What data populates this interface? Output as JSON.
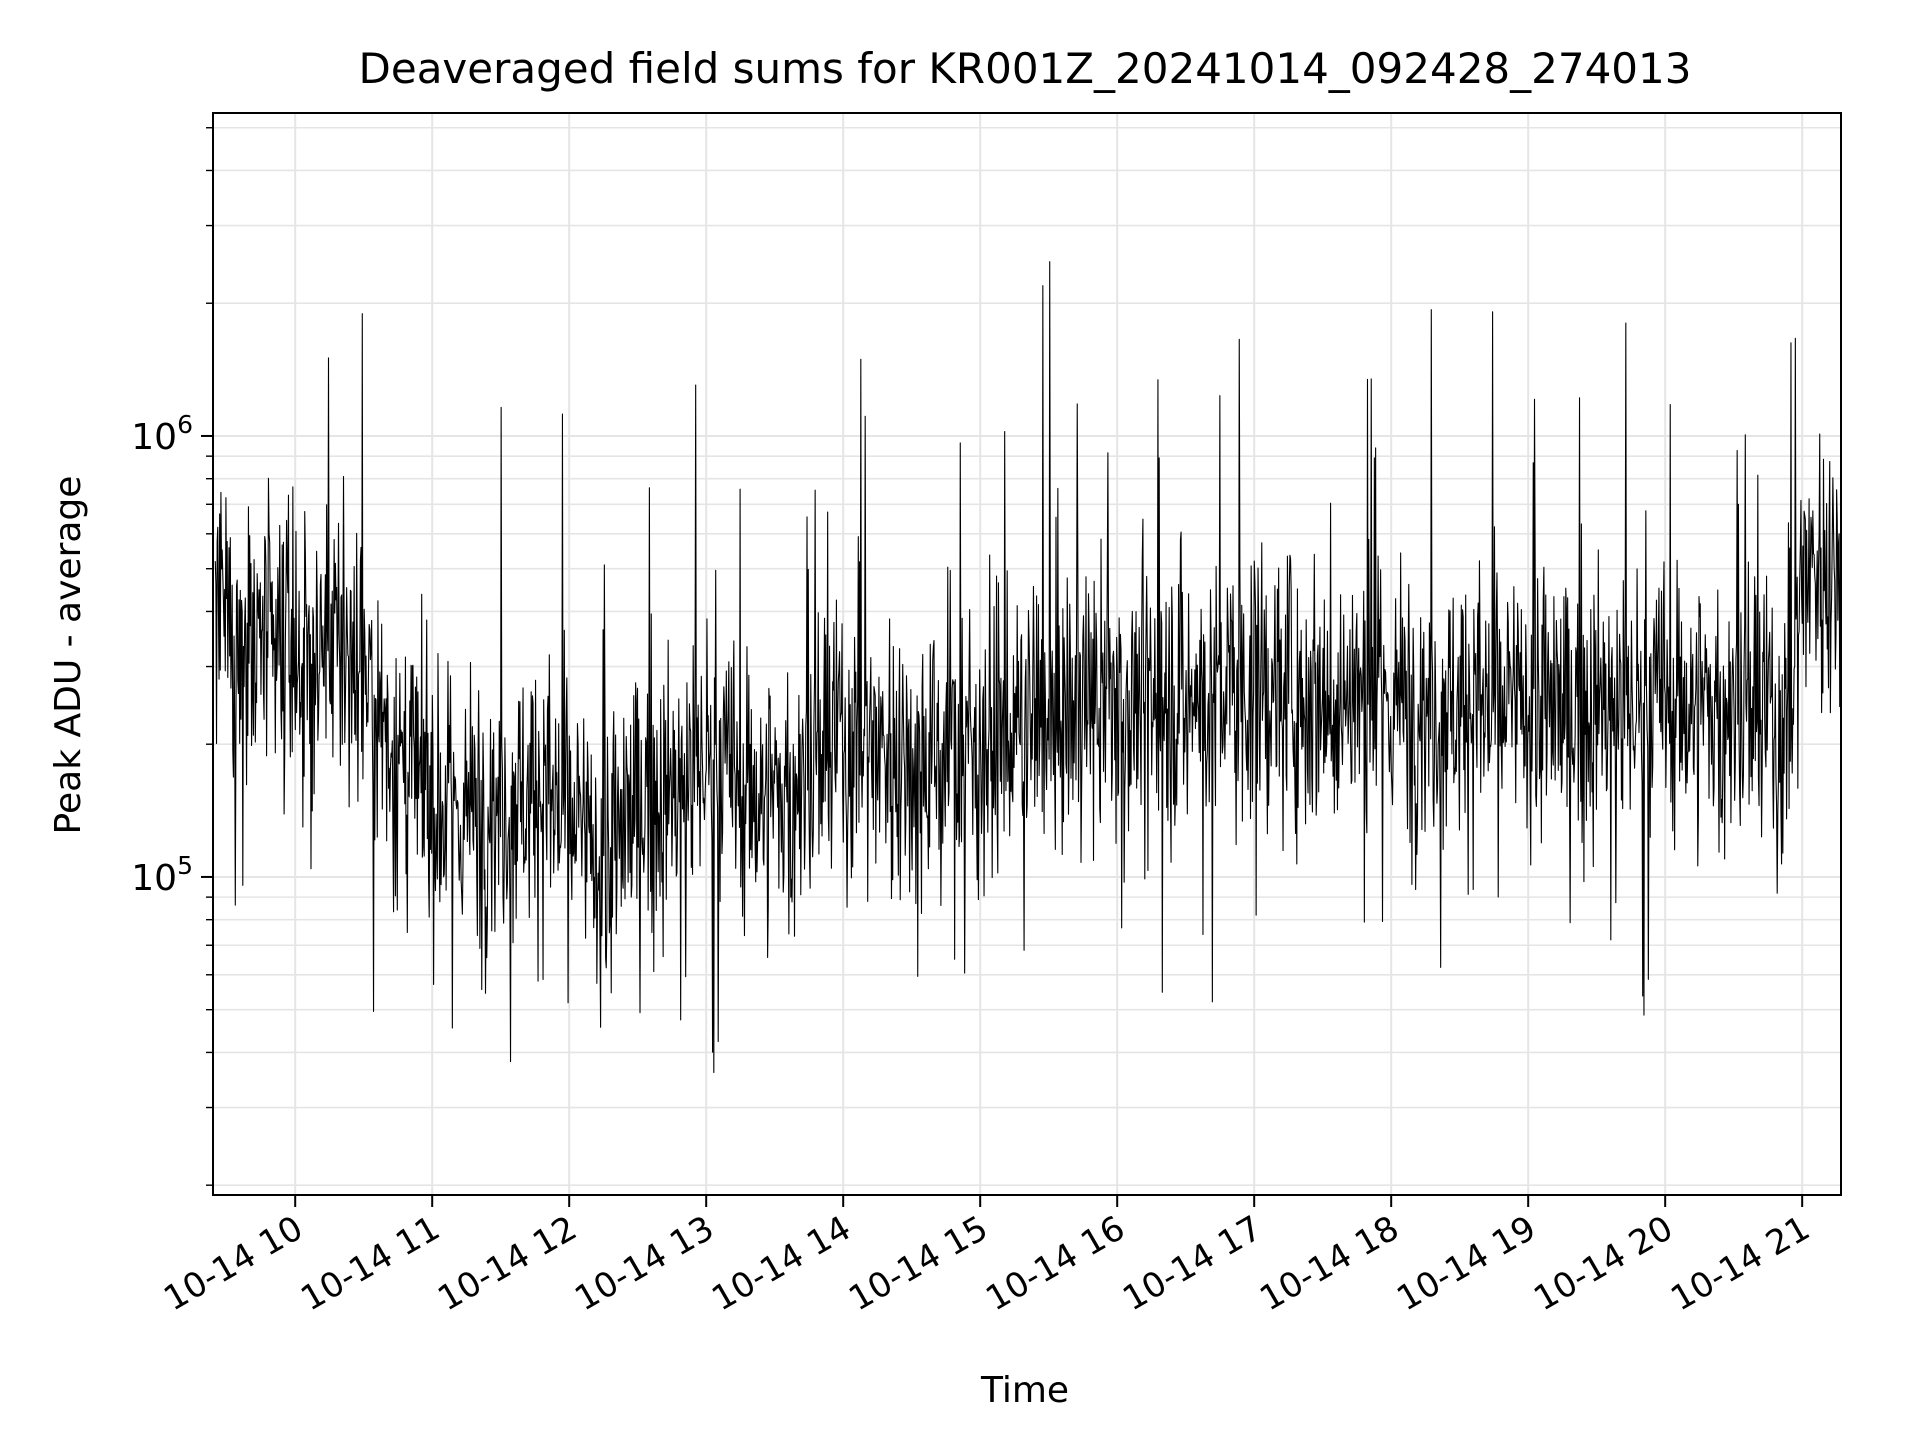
{
  "chart_data": {
    "type": "line",
    "title": "Deaveraged field sums for KR001Z_20241014_092428_274013",
    "xlabel": "Time",
    "ylabel": "Peak ADU - average",
    "x_ticks": [
      "10-14 10",
      "10-14 11",
      "10-14 12",
      "10-14 13",
      "10-14 14",
      "10-14 15",
      "10-14 16",
      "10-14 17",
      "10-14 18",
      "10-14 19",
      "10-14 20",
      "10-14 21"
    ],
    "x_tick_rotation_deg": 30,
    "xlim": [
      "2024-10-14 09:24",
      "2024-10-14 21:17"
    ],
    "y_scale": "log",
    "ylim": [
      19000,
      5400000
    ],
    "y_major_ticks": [
      {
        "value": 100000,
        "base": "10",
        "exp": "5"
      },
      {
        "value": 1000000,
        "base": "10",
        "exp": "6"
      }
    ],
    "grid": true,
    "line_color": "#000000",
    "grid_color": "#e5e5e5",
    "series": [
      {
        "x": [
          "2024-10-14 09:25",
          "2024-10-14 09:40",
          "2024-10-14 10:00",
          "2024-10-14 10:15",
          "2024-10-14 10:30",
          "2024-10-14 10:45",
          "2024-10-14 11:00",
          "2024-10-14 11:15",
          "2024-10-14 11:30",
          "2024-10-14 11:45",
          "2024-10-14 12:00",
          "2024-10-14 12:15",
          "2024-10-14 12:30",
          "2024-10-14 12:45",
          "2024-10-14 13:00",
          "2024-10-14 13:15",
          "2024-10-14 13:30",
          "2024-10-14 13:45",
          "2024-10-14 14:00",
          "2024-10-14 14:30",
          "2024-10-14 15:00",
          "2024-10-14 15:30",
          "2024-10-14 16:00",
          "2024-10-14 16:30",
          "2024-10-14 17:00",
          "2024-10-14 17:30",
          "2024-10-14 18:00",
          "2024-10-14 18:30",
          "2024-10-14 19:00",
          "2024-10-14 19:30",
          "2024-10-14 20:00",
          "2024-10-14 20:30",
          "2024-10-14 20:55",
          "2024-10-14 21:00",
          "2024-10-14 21:10",
          "2024-10-14 21:17"
        ],
        "values": [
          380000,
          340000,
          300000,
          330000,
          300000,
          180000,
          150000,
          140000,
          150000,
          160000,
          140000,
          100000,
          150000,
          150000,
          190000,
          160000,
          150000,
          170000,
          210000,
          190000,
          200000,
          230000,
          250000,
          260000,
          270000,
          260000,
          250000,
          250000,
          240000,
          240000,
          250000,
          240000,
          220000,
          500000,
          520000,
          500000
        ]
      }
    ]
  }
}
